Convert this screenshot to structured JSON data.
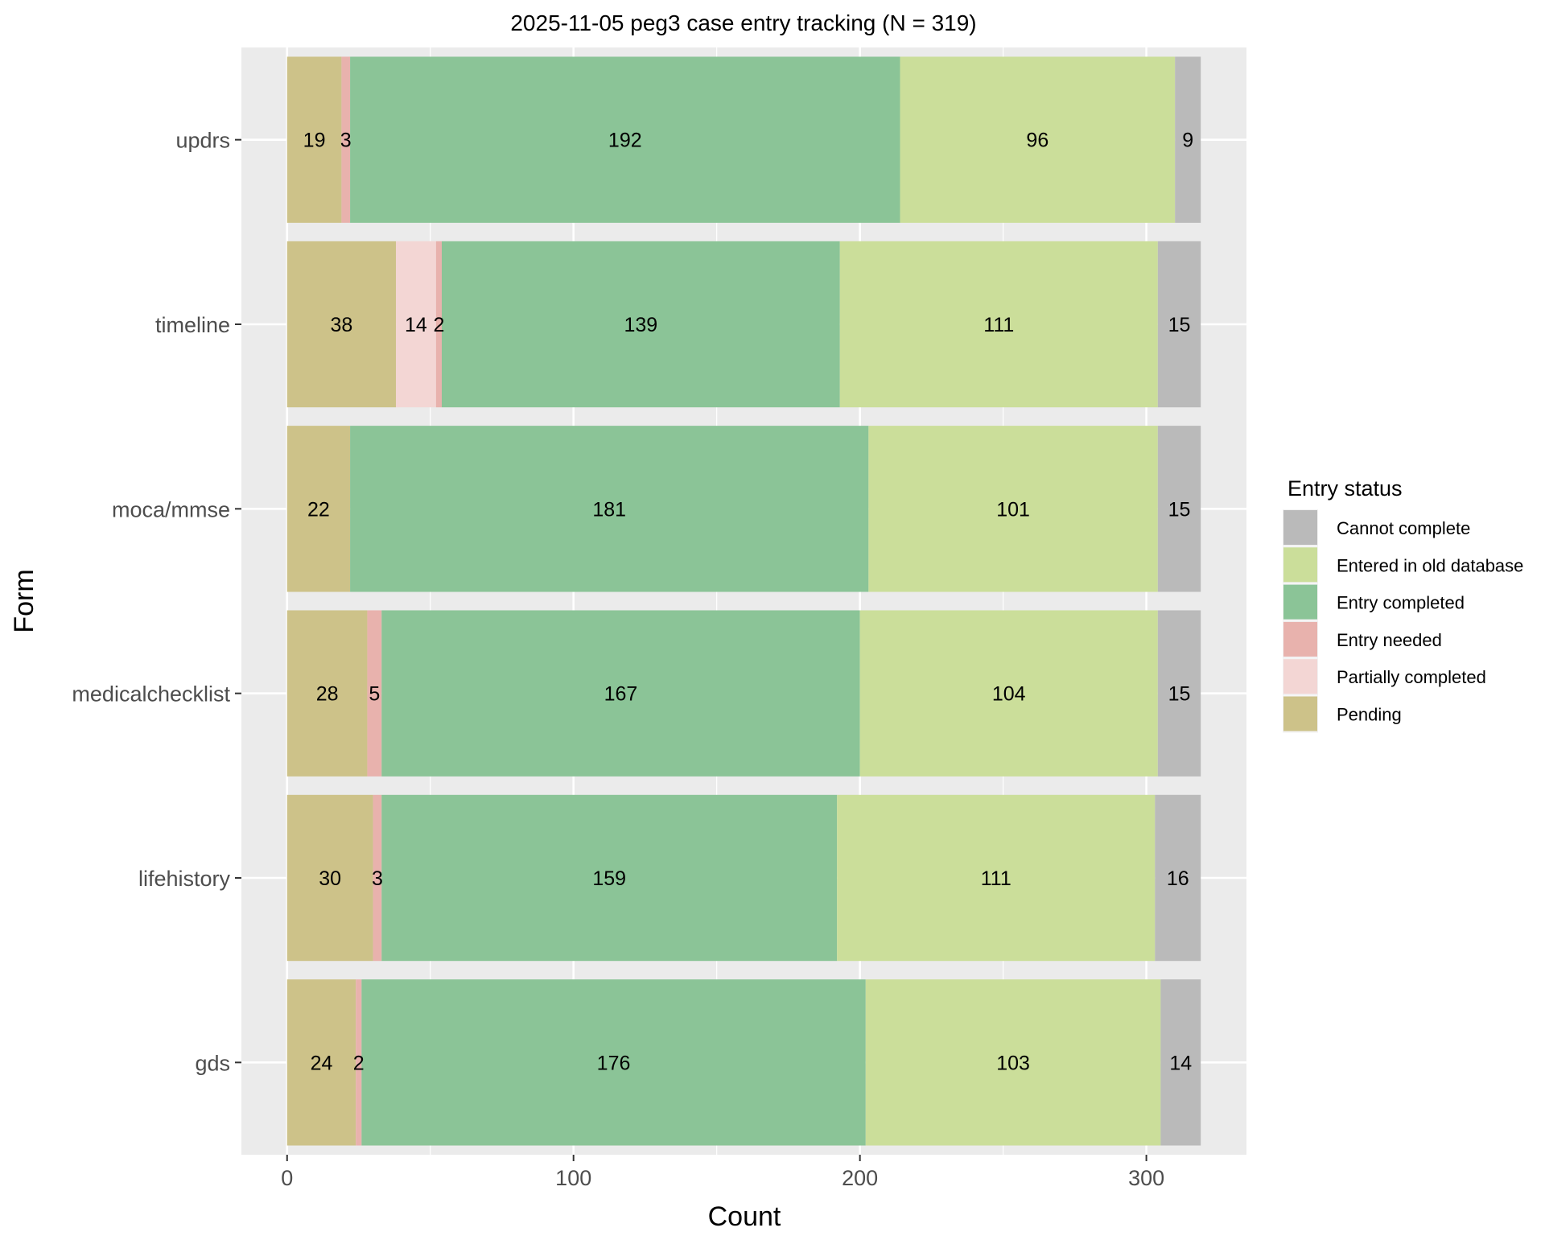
{
  "chart_data": {
    "type": "bar",
    "orientation": "horizontal",
    "stacked": true,
    "title": "2025-11-05 peg3 case entry tracking (N = 319)",
    "xlabel": "Count",
    "ylabel": "Form",
    "xlim": [
      -15.95,
      334.95
    ],
    "xticks": [
      0,
      100,
      200,
      300
    ],
    "xtick_labels": [
      "0",
      "100",
      "200",
      "300"
    ],
    "minor_xticks": [
      50,
      150,
      250
    ],
    "grid": true,
    "categories": [
      "updrs",
      "timeline",
      "moca/mmse",
      "medicalchecklist",
      "lifehistory",
      "gds"
    ],
    "stack_order": [
      "Pending",
      "Partially completed",
      "Entry needed",
      "Entry completed",
      "Entered in old database",
      "Cannot complete"
    ],
    "series": [
      {
        "name": "Pending",
        "color": "#CDC289",
        "values": [
          19,
          38,
          22,
          28,
          30,
          24
        ]
      },
      {
        "name": "Partially completed",
        "color": "#F3D6D4",
        "values": [
          0,
          14,
          0,
          0,
          0,
          0
        ]
      },
      {
        "name": "Entry needed",
        "color": "#E8B2AD",
        "values": [
          3,
          2,
          0,
          5,
          3,
          2
        ]
      },
      {
        "name": "Entry completed",
        "color": "#8BC497",
        "values": [
          192,
          139,
          181,
          167,
          159,
          176
        ]
      },
      {
        "name": "Entered in old database",
        "color": "#CBDE9A",
        "values": [
          96,
          111,
          101,
          104,
          111,
          103
        ]
      },
      {
        "name": "Cannot complete",
        "color": "#BABABA",
        "values": [
          9,
          15,
          15,
          15,
          16,
          14
        ]
      }
    ],
    "legend": {
      "title": "Entry status",
      "position": "right",
      "items": [
        "Cannot complete",
        "Entered in old database",
        "Entry completed",
        "Entry needed",
        "Partially completed",
        "Pending"
      ]
    }
  }
}
